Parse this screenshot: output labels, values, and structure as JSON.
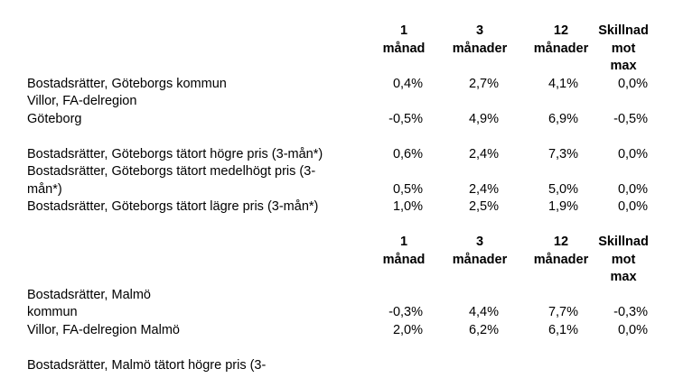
{
  "tables": [
    {
      "headers": [
        [
          "1",
          "månad"
        ],
        [
          "3",
          "månader"
        ],
        [
          "12",
          "månader"
        ],
        [
          "Skillnad",
          "mot",
          "max"
        ]
      ],
      "rows": [
        {
          "label": [
            "Bostadsrätter, Göteborgs kommun"
          ],
          "values": [
            "0,4%",
            "2,7%",
            "4,1%",
            "0,0%"
          ]
        },
        {
          "label": [
            "Villor, FA-delregion",
            "Göteborg"
          ],
          "values": [
            "-0,5%",
            "4,9%",
            "6,9%",
            "-0,5%"
          ]
        },
        {
          "label": [
            "Bostadsrätter, Göteborgs tätort högre pris (3-mån*)"
          ],
          "values": [
            "0,6%",
            "2,4%",
            "7,3%",
            "0,0%"
          ]
        },
        {
          "label": [
            "Bostadsrätter, Göteborgs tätort medelhögt pris (3-",
            "mån*)"
          ],
          "values": [
            "0,5%",
            "2,4%",
            "5,0%",
            "0,0%"
          ]
        },
        {
          "label": [
            "Bostadsrätter, Göteborgs tätort lägre pris (3-mån*)"
          ],
          "values": [
            "1,0%",
            "2,5%",
            "1,9%",
            "0,0%"
          ]
        }
      ]
    },
    {
      "headers": [
        [
          "1",
          "månad"
        ],
        [
          "3",
          "månader"
        ],
        [
          "12",
          "månader"
        ],
        [
          "Skillnad",
          "mot",
          "max"
        ]
      ],
      "rows": [
        {
          "label": [
            "Bostadsrätter, Malmö",
            "kommun"
          ],
          "values": [
            "-0,3%",
            "4,4%",
            "7,7%",
            "-0,3%"
          ]
        },
        {
          "label": [
            "Villor, FA-delregion Malmö"
          ],
          "values": [
            "2,0%",
            "6,2%",
            "6,1%",
            "0,0%"
          ]
        },
        {
          "label": [
            "Bostadsrätter, Malmö tätort högre pris (3-"
          ]
        }
      ]
    }
  ]
}
